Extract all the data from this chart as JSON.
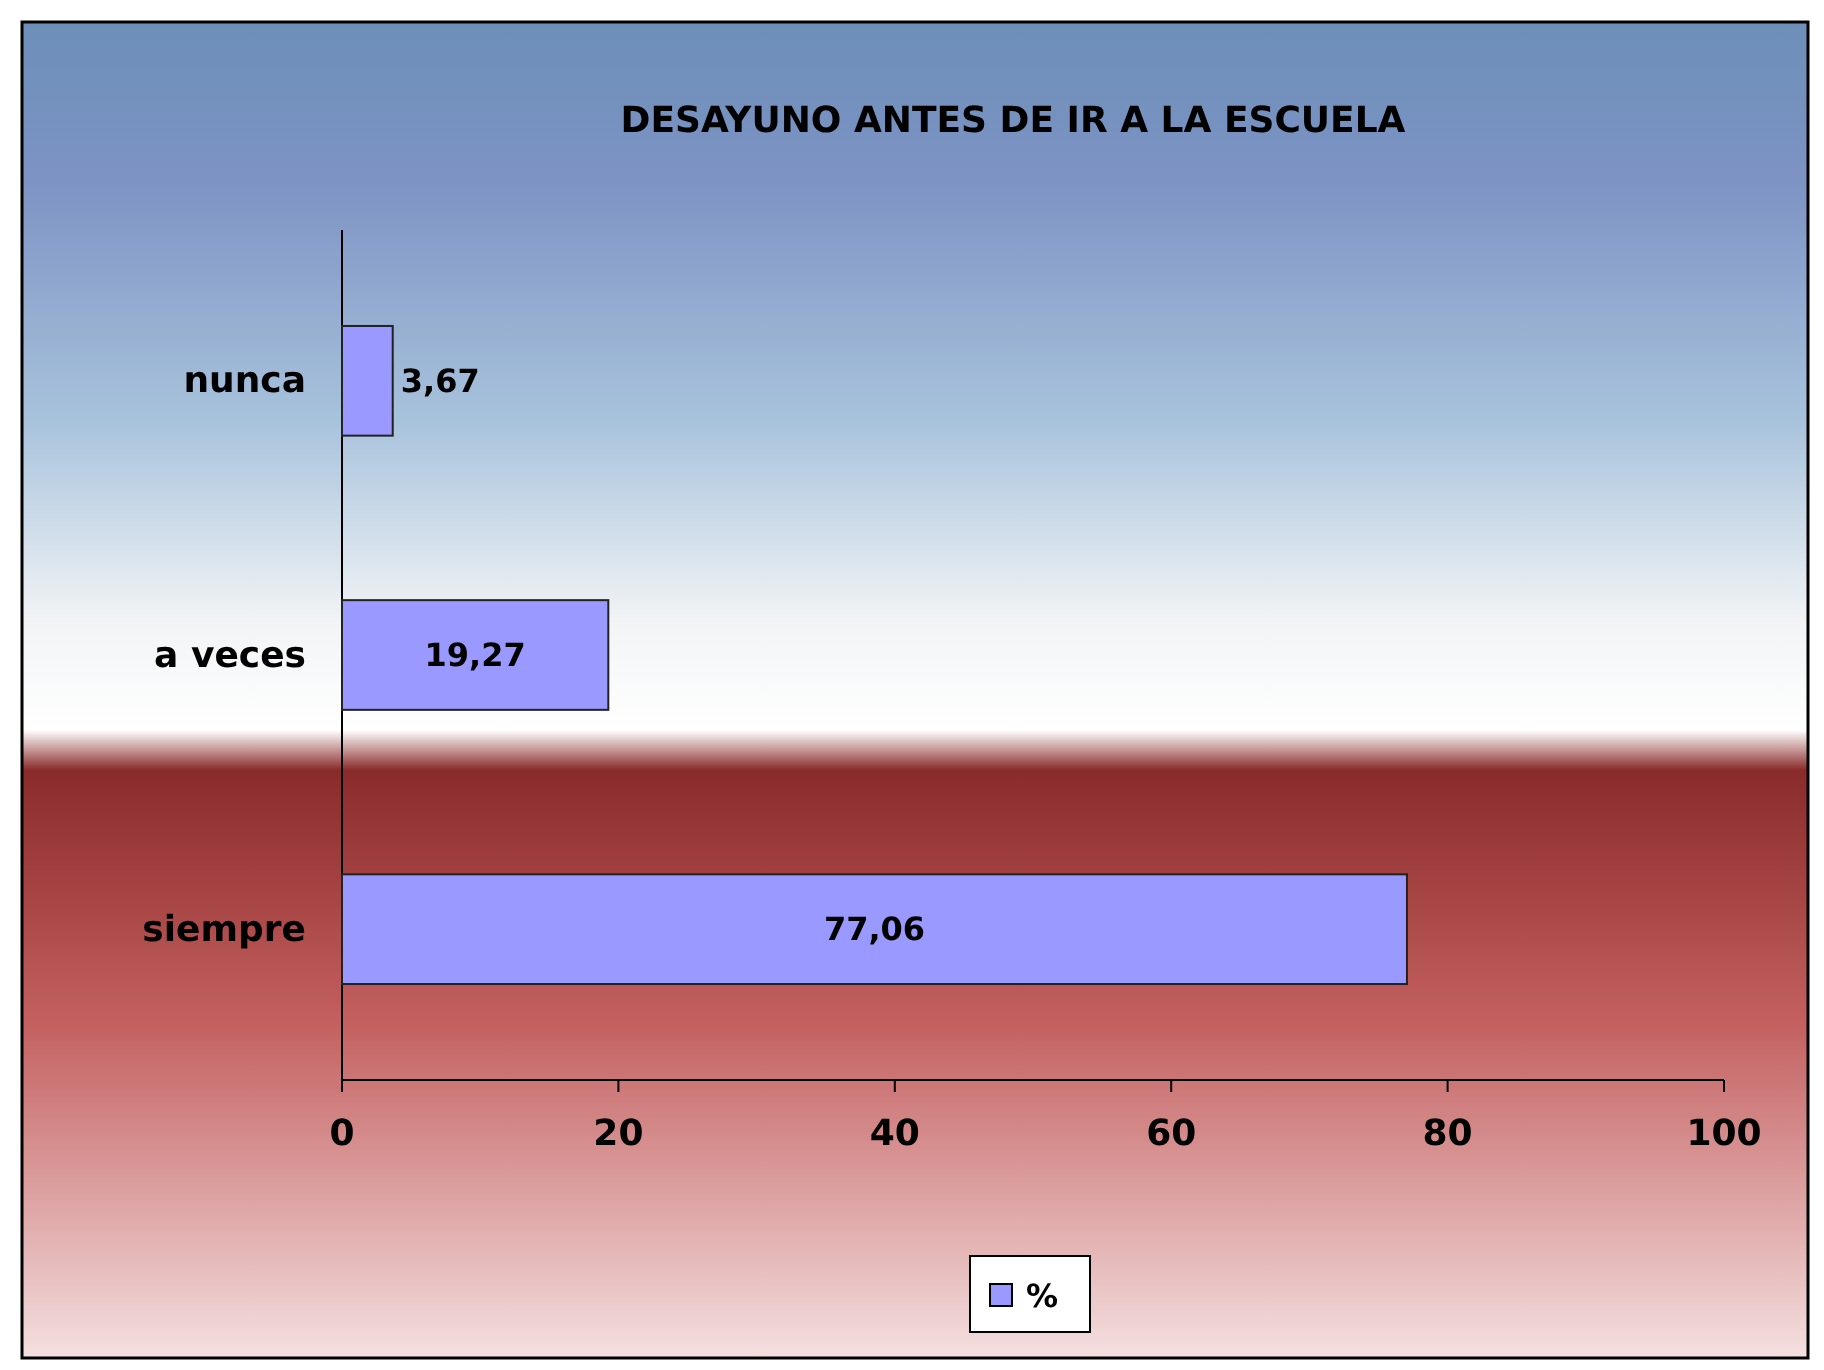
{
  "chart_data": {
    "type": "bar",
    "orientation": "horizontal",
    "title": "DESAYUNO ANTES DE IR A LA ESCUELA",
    "categories": [
      "nunca",
      "a veces",
      "siempre"
    ],
    "series": [
      {
        "name": "%",
        "color": "#9999ff",
        "values": [
          3.67,
          19.27,
          77.06
        ],
        "value_labels": [
          "3,67",
          "19,27",
          "77,06"
        ]
      }
    ],
    "xlim": [
      0,
      100
    ],
    "xticks": [
      0,
      20,
      40,
      60,
      80,
      100
    ],
    "grid": false,
    "legend": "bottom"
  }
}
